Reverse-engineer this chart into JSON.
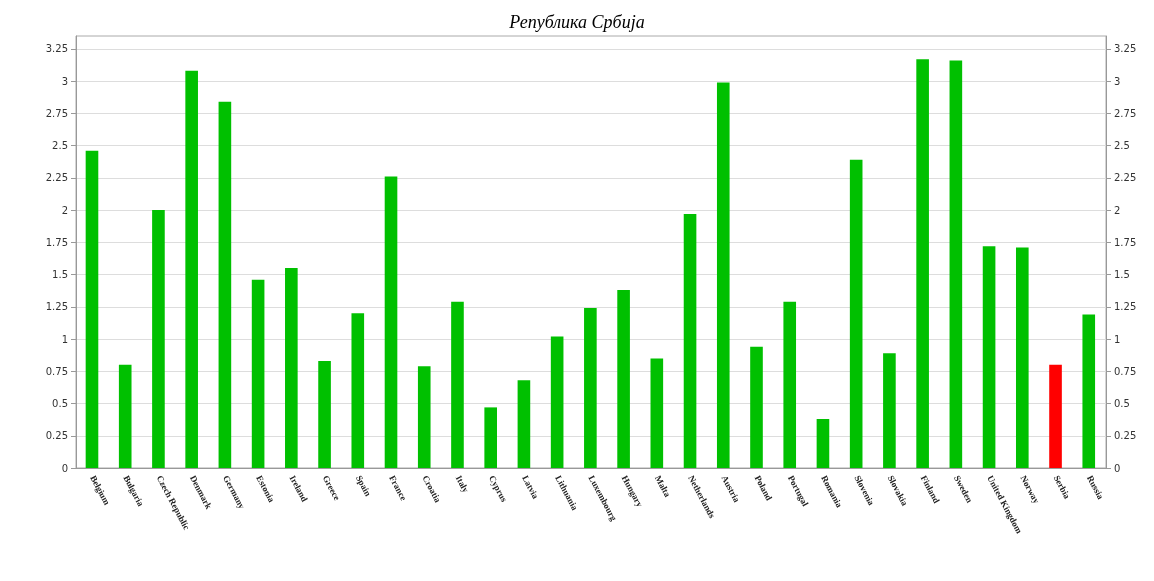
{
  "chart_data": {
    "type": "bar",
    "title": "Република Србија",
    "categories": [
      "Belgium",
      "Bulgaria",
      "Czech Republic",
      "Denmark",
      "Germany",
      "Estonia",
      "Ireland",
      "Greece",
      "Spain",
      "France",
      "Croatia",
      "Italy",
      "Cyprus",
      "Latvia",
      "Lithuania",
      "Luxembourg",
      "Hungary",
      "Malta",
      "Netherlands",
      "Austria",
      "Poland",
      "Portugal",
      "Romania",
      "Slovenia",
      "Slovakia",
      "Finland",
      "Sweden",
      "United Kingdom",
      "Norway",
      "Serbia",
      "Russia"
    ],
    "values": [
      2.46,
      0.8,
      2.0,
      3.08,
      2.84,
      1.46,
      1.55,
      0.83,
      1.2,
      2.26,
      0.79,
      1.29,
      0.47,
      0.68,
      1.02,
      1.24,
      1.38,
      0.85,
      1.97,
      2.99,
      0.94,
      1.29,
      0.38,
      2.39,
      0.89,
      3.17,
      3.16,
      1.72,
      1.71,
      0.8,
      1.19
    ],
    "colors": [
      "#00c000",
      "#00c000",
      "#00c000",
      "#00c000",
      "#00c000",
      "#00c000",
      "#00c000",
      "#00c000",
      "#00c000",
      "#00c000",
      "#00c000",
      "#00c000",
      "#00c000",
      "#00c000",
      "#00c000",
      "#00c000",
      "#00c000",
      "#00c000",
      "#00c000",
      "#00c000",
      "#00c000",
      "#00c000",
      "#00c000",
      "#00c000",
      "#00c000",
      "#00c000",
      "#00c000",
      "#00c000",
      "#00c000",
      "#ff0000",
      "#00c000"
    ],
    "ylim": [
      0,
      3.35
    ],
    "yticks": [
      0,
      0.25,
      0.5,
      0.75,
      1,
      1.25,
      1.5,
      1.75,
      2,
      2.25,
      2.5,
      2.75,
      3,
      3.25
    ],
    "y2lim": [
      0,
      3.35
    ],
    "y2ticks": [
      0,
      0.25,
      0.5,
      0.75,
      1,
      1.25,
      1.5,
      1.75,
      2,
      2.25,
      2.5,
      2.75,
      3,
      3.25
    ],
    "grid": "y"
  }
}
